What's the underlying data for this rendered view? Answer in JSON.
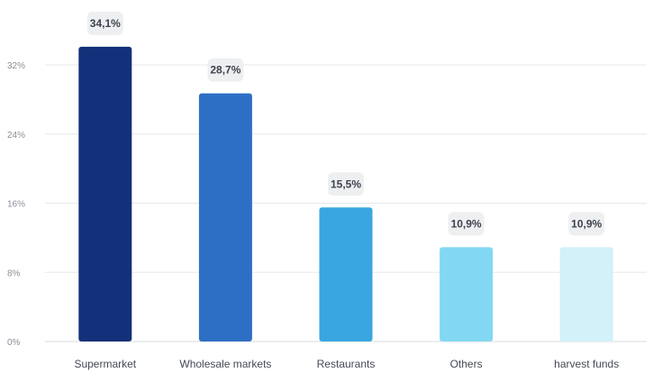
{
  "chart_data": {
    "type": "bar",
    "categories": [
      "Supermarket",
      "Wholesale markets",
      "Restaurants",
      "Others",
      "harvest funds"
    ],
    "values": [
      34.1,
      28.7,
      15.5,
      10.9,
      10.9
    ],
    "value_labels": [
      "34,1%",
      "28,7%",
      "15,5%",
      "10,9%",
      "10,9%"
    ],
    "colors": [
      "#13307a",
      "#2d6fc4",
      "#39a6e0",
      "#82d8f2",
      "#d2f1f9"
    ],
    "title": "",
    "xlabel": "",
    "ylabel": "",
    "ylim": [
      0,
      32
    ],
    "yticks": [
      0,
      8,
      16,
      24,
      32
    ],
    "ytick_labels": [
      "0%",
      "8%",
      "16%",
      "24%",
      "32%"
    ],
    "grid": true,
    "legend": "none"
  }
}
